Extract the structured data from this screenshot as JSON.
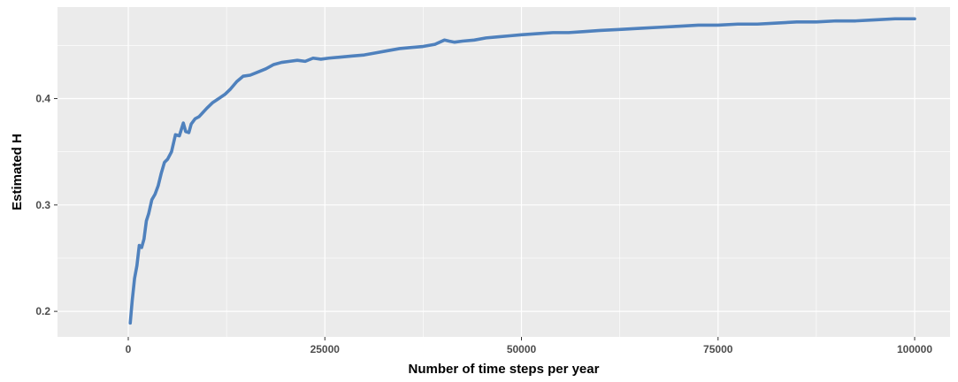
{
  "chart_data": {
    "type": "line",
    "xlabel": "Number of time steps per year",
    "ylabel": "Estimated H",
    "xlim": [
      -9000,
      104500
    ],
    "ylim": [
      0.176,
      0.486
    ],
    "x_ticks": [
      0,
      25000,
      50000,
      75000,
      100000
    ],
    "x_tick_labels": [
      "0",
      "25000",
      "50000",
      "75000",
      "100000"
    ],
    "y_ticks": [
      0.2,
      0.3,
      0.4
    ],
    "y_tick_labels": [
      "0.2",
      "0.3",
      "0.4"
    ],
    "grid": true,
    "colors": {
      "panel": "#ebebeb",
      "grid": "#ffffff",
      "line": "#4f81bd"
    },
    "series": [
      {
        "x": [
          250,
          500,
          800,
          1100,
          1400,
          1700,
          2000,
          2300,
          2600,
          3000,
          3400,
          3800,
          4200,
          4600,
          5000,
          5500,
          6000,
          6500,
          7000,
          7300,
          7700,
          8000,
          8500,
          9000,
          9500,
          10000,
          10700,
          11500,
          12300,
          13000,
          13800,
          14600,
          15500,
          16500,
          17500,
          18500,
          19500,
          20500,
          21500,
          22500,
          23500,
          24500,
          25500,
          27000,
          28500,
          30000,
          31500,
          33000,
          34500,
          36000,
          37500,
          39000,
          40200,
          40800,
          41500,
          42500,
          44000,
          45500,
          47000,
          48500,
          50000,
          52000,
          54000,
          56000,
          58000,
          60000,
          62500,
          65000,
          67500,
          70000,
          72500,
          75000,
          77500,
          80000,
          82500,
          85000,
          87500,
          90000,
          92500,
          95000,
          97500,
          100000
        ],
        "y": [
          0.189,
          0.21,
          0.231,
          0.243,
          0.262,
          0.26,
          0.268,
          0.285,
          0.292,
          0.305,
          0.31,
          0.318,
          0.33,
          0.34,
          0.343,
          0.35,
          0.366,
          0.365,
          0.377,
          0.369,
          0.368,
          0.376,
          0.381,
          0.383,
          0.387,
          0.391,
          0.396,
          0.4,
          0.404,
          0.409,
          0.416,
          0.421,
          0.422,
          0.425,
          0.428,
          0.432,
          0.434,
          0.435,
          0.436,
          0.435,
          0.438,
          0.437,
          0.438,
          0.439,
          0.44,
          0.441,
          0.443,
          0.445,
          0.447,
          0.448,
          0.449,
          0.451,
          0.455,
          0.454,
          0.453,
          0.454,
          0.455,
          0.457,
          0.458,
          0.459,
          0.46,
          0.461,
          0.462,
          0.462,
          0.463,
          0.464,
          0.465,
          0.466,
          0.467,
          0.468,
          0.469,
          0.469,
          0.47,
          0.47,
          0.471,
          0.472,
          0.472,
          0.473,
          0.473,
          0.474,
          0.475,
          0.475
        ]
      }
    ]
  }
}
